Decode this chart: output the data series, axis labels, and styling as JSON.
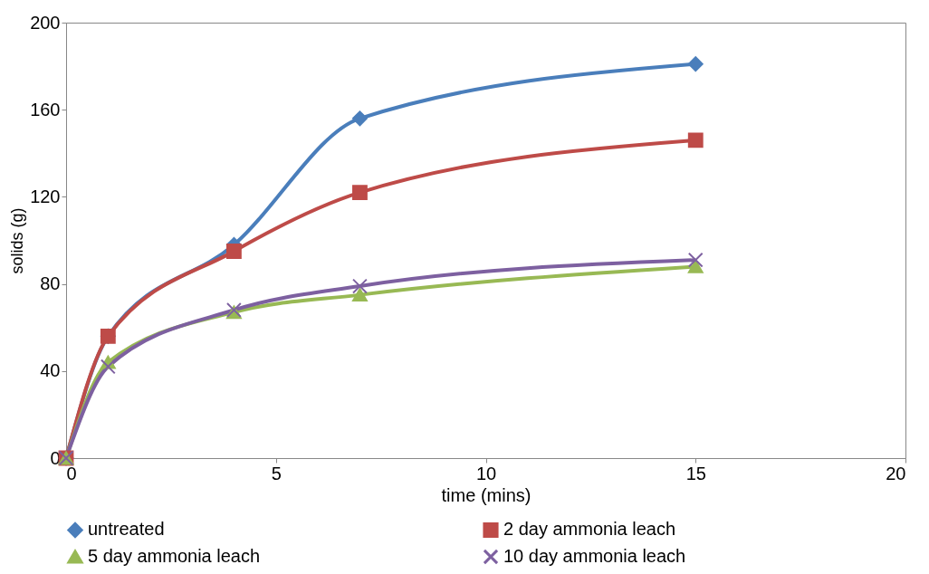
{
  "chart_data": {
    "type": "line",
    "xlabel": "time (mins)",
    "ylabel": "solids (g)",
    "x": [
      0,
      1,
      4,
      7,
      15
    ],
    "series": [
      {
        "name": "untreated",
        "color": "#4a7ebb",
        "marker": "diamond",
        "values": [
          0,
          56,
          98,
          156,
          181
        ]
      },
      {
        "name": "2 day ammonia leach",
        "color": "#be4b48",
        "marker": "square",
        "values": [
          0,
          56,
          95,
          122,
          146
        ]
      },
      {
        "name": "5 day ammonia leach",
        "color": "#98b954",
        "marker": "triangle",
        "values": [
          0,
          44,
          67,
          75,
          88
        ]
      },
      {
        "name": "10 day ammonia leach",
        "color": "#7d60a0",
        "marker": "cross",
        "values": [
          0,
          42,
          68,
          79,
          91
        ]
      }
    ],
    "xlim": [
      0,
      20
    ],
    "xticks": [
      0,
      5,
      10,
      15,
      20
    ],
    "ylim": [
      0,
      200
    ],
    "yticks": [
      0,
      40,
      80,
      120,
      160,
      200
    ],
    "grid": false,
    "legend": "bottom",
    "line_style": "solid"
  }
}
